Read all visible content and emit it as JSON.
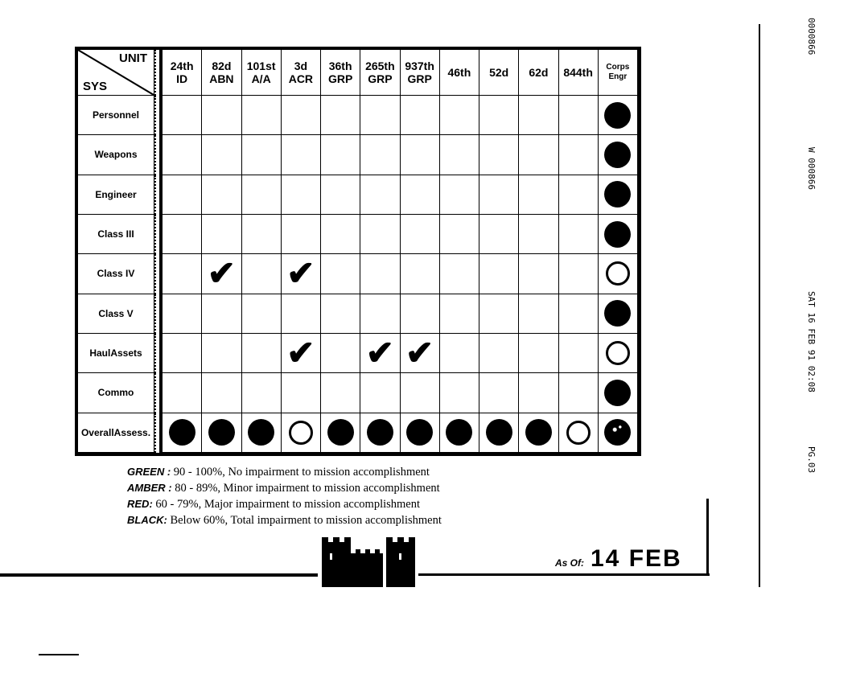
{
  "header": {
    "corner_unit": "UNIT",
    "corner_sys": "SYS",
    "units": [
      [
        "24th",
        "ID"
      ],
      [
        "82d",
        "ABN"
      ],
      [
        "101st",
        "A/A"
      ],
      [
        "3d",
        "ACR"
      ],
      [
        "36th",
        "GRP"
      ],
      [
        "265th",
        "GRP"
      ],
      [
        "937th",
        "GRP"
      ],
      [
        "46th",
        ""
      ],
      [
        "52d",
        ""
      ],
      [
        "62d",
        ""
      ],
      [
        "844th",
        ""
      ],
      [
        "Corps",
        "Engr"
      ]
    ]
  },
  "rows": [
    {
      "label": [
        "Personnel"
      ],
      "cells": [
        "",
        "",
        "",
        "",
        "",
        "",
        "",
        "",
        "",
        "",
        "",
        "filled"
      ]
    },
    {
      "label": [
        "Weapons"
      ],
      "cells": [
        "",
        "",
        "",
        "",
        "",
        "",
        "",
        "",
        "",
        "",
        "",
        "filled"
      ]
    },
    {
      "label": [
        "Engineer"
      ],
      "cells": [
        "",
        "",
        "",
        "",
        "",
        "",
        "",
        "",
        "",
        "",
        "",
        "filled"
      ]
    },
    {
      "label": [
        "Class III"
      ],
      "cells": [
        "",
        "",
        "",
        "",
        "",
        "",
        "",
        "",
        "",
        "",
        "",
        "filled"
      ]
    },
    {
      "label": [
        "Class IV"
      ],
      "cells": [
        "",
        "check",
        "",
        "check",
        "",
        "",
        "",
        "",
        "",
        "",
        "",
        "hollow"
      ]
    },
    {
      "label": [
        "Class V"
      ],
      "cells": [
        "",
        "",
        "",
        "",
        "",
        "",
        "",
        "",
        "",
        "",
        "",
        "filled"
      ]
    },
    {
      "label": [
        "Haul",
        "Assets"
      ],
      "cells": [
        "",
        "",
        "",
        "check",
        "",
        "check",
        "check",
        "",
        "",
        "",
        "",
        "hollow"
      ]
    },
    {
      "label": [
        "Commo"
      ],
      "cells": [
        "",
        "",
        "",
        "",
        "",
        "",
        "",
        "",
        "",
        "",
        "",
        "filled"
      ]
    },
    {
      "label": [
        "Overall",
        "Assess."
      ],
      "cells": [
        "filled",
        "filled",
        "filled",
        "hollow",
        "filled",
        "filled",
        "filled",
        "filled",
        "filled",
        "filled",
        "hollow",
        "speck"
      ]
    }
  ],
  "legend": [
    {
      "key": "GREEN :",
      "text": " 90 - 100%, No impairment to mission accomplishment"
    },
    {
      "key": "AMBER :",
      "text": " 80 - 89%, Minor impairment to mission accomplishment"
    },
    {
      "key": "RED:",
      "text": " 60 - 79%, Major impairment to mission accomplishment"
    },
    {
      "key": "BLACK:",
      "text": " Below 60%, Total impairment to mission accomplishment"
    }
  ],
  "as_of": {
    "label": "As Of:",
    "value": "14 FEB"
  },
  "fax_header": {
    "id1": "0000866",
    "id2": "W 000866",
    "datetime": "SAT 16 FEB 91 02:08",
    "page": "PG.03"
  },
  "icons": {
    "logo": "castle-icon",
    "mark": "checkmark-icon"
  }
}
